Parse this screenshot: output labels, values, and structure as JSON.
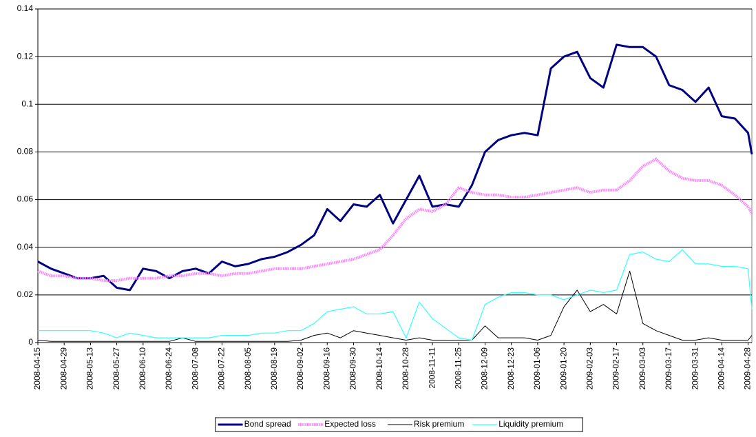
{
  "chart_data": {
    "type": "line",
    "x": [
      "2008-04-15",
      "2008-04-22",
      "2008-04-29",
      "2008-05-06",
      "2008-05-13",
      "2008-05-20",
      "2008-05-27",
      "2008-06-03",
      "2008-06-10",
      "2008-06-17",
      "2008-06-24",
      "2008-07-01",
      "2008-07-08",
      "2008-07-15",
      "2008-07-22",
      "2008-07-29",
      "2008-08-05",
      "2008-08-12",
      "2008-08-19",
      "2008-08-26",
      "2008-09-02",
      "2008-09-09",
      "2008-09-16",
      "2008-09-23",
      "2008-09-30",
      "2008-10-07",
      "2008-10-14",
      "2008-10-21",
      "2008-10-28",
      "2008-11-04",
      "2008-11-11",
      "2008-11-18",
      "2008-11-25",
      "2008-12-02",
      "2008-12-09",
      "2008-12-16",
      "2008-12-23",
      "2008-12-30",
      "2009-01-06",
      "2009-01-13",
      "2009-01-20",
      "2009-01-27",
      "2009-02-03",
      "2009-02-10",
      "2009-02-17",
      "2009-02-24",
      "2009-03-03",
      "2009-03-10",
      "2009-03-17",
      "2009-03-24",
      "2009-03-31",
      "2009-04-07",
      "2009-04-14",
      "2009-04-21",
      "2009-04-28",
      "2009-04-30"
    ],
    "series": [
      {
        "name": "Bond spread",
        "color": "#000080",
        "values": [
          0.034,
          0.031,
          0.029,
          0.027,
          0.027,
          0.028,
          0.023,
          0.022,
          0.031,
          0.03,
          0.027,
          0.03,
          0.031,
          0.029,
          0.034,
          0.032,
          0.033,
          0.035,
          0.036,
          0.038,
          0.041,
          0.045,
          0.056,
          0.051,
          0.058,
          0.057,
          0.062,
          0.05,
          0.06,
          0.07,
          0.057,
          0.058,
          0.057,
          0.066,
          0.08,
          0.085,
          0.087,
          0.088,
          0.087,
          0.115,
          0.12,
          0.122,
          0.111,
          0.107,
          0.125,
          0.124,
          0.124,
          0.12,
          0.108,
          0.106,
          0.101,
          0.107,
          0.095,
          0.094,
          0.088,
          0.079
        ]
      },
      {
        "name": "Expected loss",
        "color": "#ff80ff",
        "values": [
          0.03,
          0.028,
          0.028,
          0.027,
          0.027,
          0.026,
          0.026,
          0.027,
          0.027,
          0.027,
          0.028,
          0.028,
          0.029,
          0.029,
          0.028,
          0.029,
          0.029,
          0.03,
          0.031,
          0.031,
          0.031,
          0.032,
          0.033,
          0.034,
          0.035,
          0.037,
          0.039,
          0.045,
          0.052,
          0.056,
          0.055,
          0.058,
          0.065,
          0.063,
          0.062,
          0.062,
          0.061,
          0.061,
          0.062,
          0.063,
          0.064,
          0.065,
          0.063,
          0.064,
          0.064,
          0.068,
          0.074,
          0.077,
          0.072,
          0.069,
          0.068,
          0.068,
          0.066,
          0.062,
          0.057,
          0.054
        ]
      },
      {
        "name": "Risk premium",
        "color": "#000000",
        "values": [
          0.001,
          0.0005,
          0.0005,
          0.0005,
          0.0005,
          0.0005,
          0.0005,
          0.0005,
          0.0005,
          0.0005,
          0.0005,
          0.002,
          0.0005,
          0.0005,
          0.0005,
          0.0005,
          0.0005,
          0.0005,
          0.0005,
          0.0005,
          0.001,
          0.003,
          0.004,
          0.002,
          0.005,
          0.004,
          0.003,
          0.002,
          0.001,
          0.002,
          0.001,
          0.001,
          0.001,
          0.001,
          0.007,
          0.002,
          0.002,
          0.002,
          0.001,
          0.003,
          0.015,
          0.022,
          0.013,
          0.016,
          0.012,
          0.03,
          0.008,
          0.005,
          0.003,
          0.001,
          0.001,
          0.002,
          0.001,
          0.001,
          0.001,
          0.003
        ]
      },
      {
        "name": "Liquidity premium",
        "color": "#33ffff",
        "values": [
          0.005,
          0.005,
          0.005,
          0.005,
          0.005,
          0.004,
          0.002,
          0.004,
          0.003,
          0.002,
          0.002,
          0.002,
          0.002,
          0.002,
          0.003,
          0.003,
          0.003,
          0.004,
          0.004,
          0.005,
          0.005,
          0.008,
          0.013,
          0.014,
          0.015,
          0.012,
          0.012,
          0.013,
          0.002,
          0.017,
          0.01,
          0.006,
          0.002,
          0.001,
          0.016,
          0.019,
          0.021,
          0.021,
          0.02,
          0.02,
          0.018,
          0.02,
          0.022,
          0.021,
          0.022,
          0.037,
          0.038,
          0.035,
          0.034,
          0.039,
          0.033,
          0.033,
          0.032,
          0.032,
          0.031,
          0.014
        ]
      }
    ],
    "xlim": [
      "2008-04-15",
      "2009-04-30"
    ],
    "xticks": [
      "2008-04-15",
      "2008-04-29",
      "2008-05-13",
      "2008-05-27",
      "2008-06-10",
      "2008-06-24",
      "2008-07-08",
      "2008-07-22",
      "2008-08-05",
      "2008-08-19",
      "2008-09-02",
      "2008-09-16",
      "2008-09-30",
      "2008-10-14",
      "2008-10-28",
      "2008-11-11",
      "2008-11-25",
      "2008-12-09",
      "2008-12-23",
      "2009-01-06",
      "2009-01-20",
      "2009-02-03",
      "2009-02-17",
      "2009-03-03",
      "2009-03-17",
      "2009-03-31",
      "2009-04-14",
      "2009-04-28"
    ],
    "ylim": [
      0,
      0.14
    ],
    "yticks": [
      0,
      0.02,
      0.04,
      0.06,
      0.08,
      0.1,
      0.12,
      0.14
    ],
    "grid": true,
    "legend": "bottom"
  }
}
